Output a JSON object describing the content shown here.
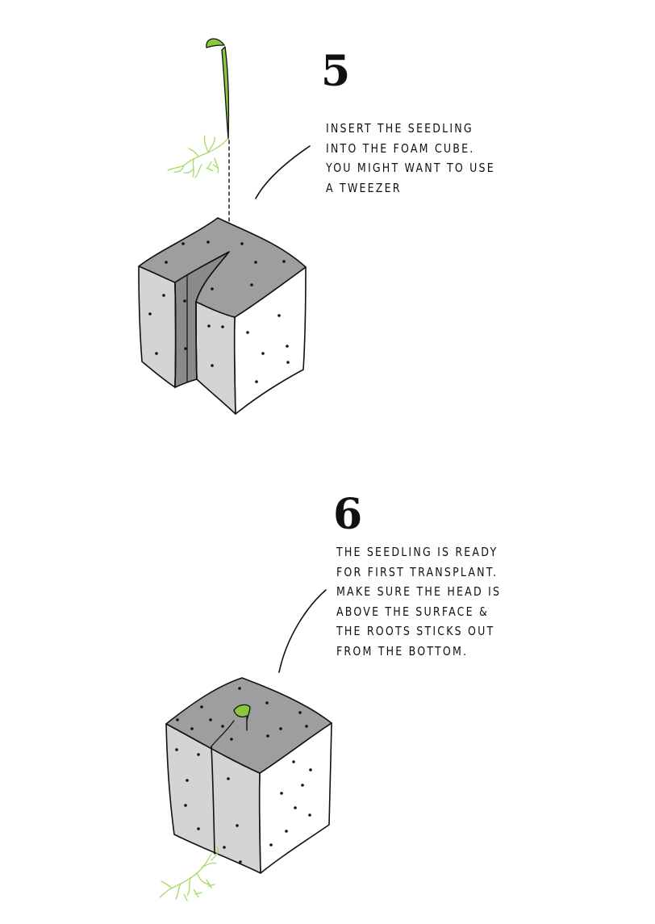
{
  "steps": [
    {
      "number": "5",
      "lines": [
        "INSERT THE SEEDLING",
        "INTO THE FOAM CUBE.",
        "YOU MIGHT WANT TO USE",
        "A TWEEZER"
      ]
    },
    {
      "number": "6",
      "lines": [
        "THE SEEDLING IS READY",
        "FOR FIRST TRANSPLANT.",
        "MAKE SURE THE HEAD IS",
        "ABOVE THE SURFACE &",
        "THE ROOTS STICKS OUT",
        "FROM THE  BOTTOM."
      ]
    }
  ],
  "colors": {
    "outline": "#111111",
    "cube_top": "#9e9e9e",
    "cube_side": "#d4d4d4",
    "cube_front": "#ffffff",
    "slit": "#8a8a8a",
    "seedling": "#8cc63f",
    "roots": "#a6d96a"
  }
}
